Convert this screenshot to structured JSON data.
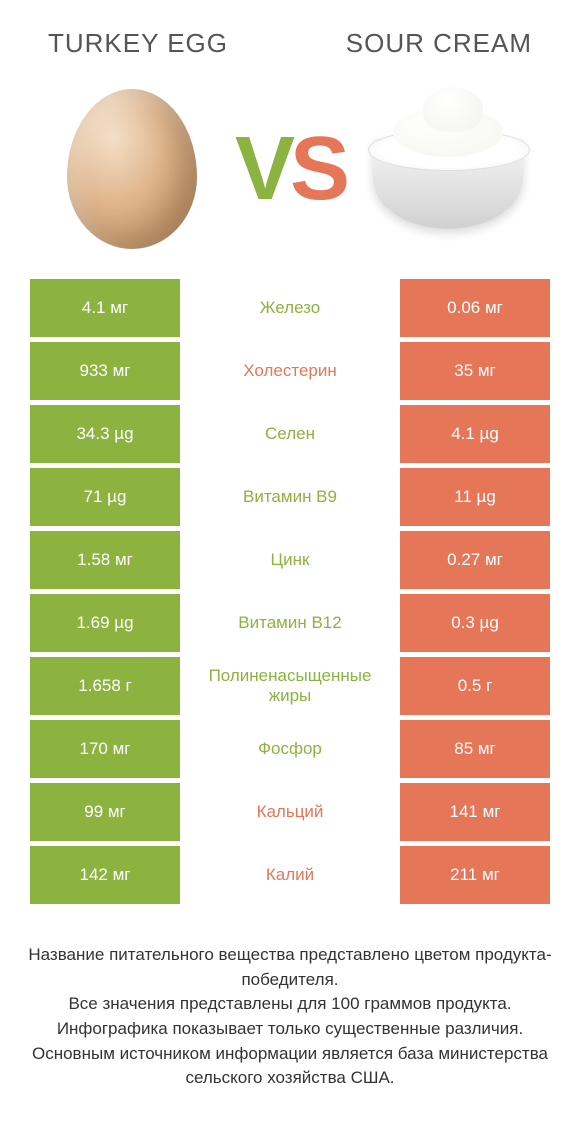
{
  "colors": {
    "green": "#8cb23f",
    "orange": "#e57758",
    "background": "#ffffff",
    "text": "#333333"
  },
  "header": {
    "left_title": "TURKEY EGG",
    "right_title": "SOUR CREAM",
    "vs_v": "V",
    "vs_s": "S"
  },
  "rows": [
    {
      "left": "4.1 мг",
      "label": "Железо",
      "right": "0.06 мг",
      "winner": "left"
    },
    {
      "left": "933 мг",
      "label": "Холестерин",
      "right": "35 мг",
      "winner": "right"
    },
    {
      "left": "34.3 µg",
      "label": "Селен",
      "right": "4.1 µg",
      "winner": "left"
    },
    {
      "left": "71 µg",
      "label": "Витамин B9",
      "right": "11 µg",
      "winner": "left"
    },
    {
      "left": "1.58 мг",
      "label": "Цинк",
      "right": "0.27 мг",
      "winner": "left"
    },
    {
      "left": "1.69 µg",
      "label": "Витамин B12",
      "right": "0.3 µg",
      "winner": "left"
    },
    {
      "left": "1.658 г",
      "label": "Полиненасыщенные жиры",
      "right": "0.5 г",
      "winner": "left"
    },
    {
      "left": "170 мг",
      "label": "Фосфор",
      "right": "85 мг",
      "winner": "left"
    },
    {
      "left": "99 мг",
      "label": "Кальций",
      "right": "141 мг",
      "winner": "right"
    },
    {
      "left": "142 мг",
      "label": "Калий",
      "right": "211 мг",
      "winner": "right"
    }
  ],
  "footer": {
    "line1": "Название питательного вещества представлено цветом продукта-победителя.",
    "line2": "Все значения представлены для 100 граммов продукта.",
    "line3": "Инфографика показывает только существенные различия.",
    "line4": "Основным источником информации является база министерства сельского хозяйства США."
  }
}
